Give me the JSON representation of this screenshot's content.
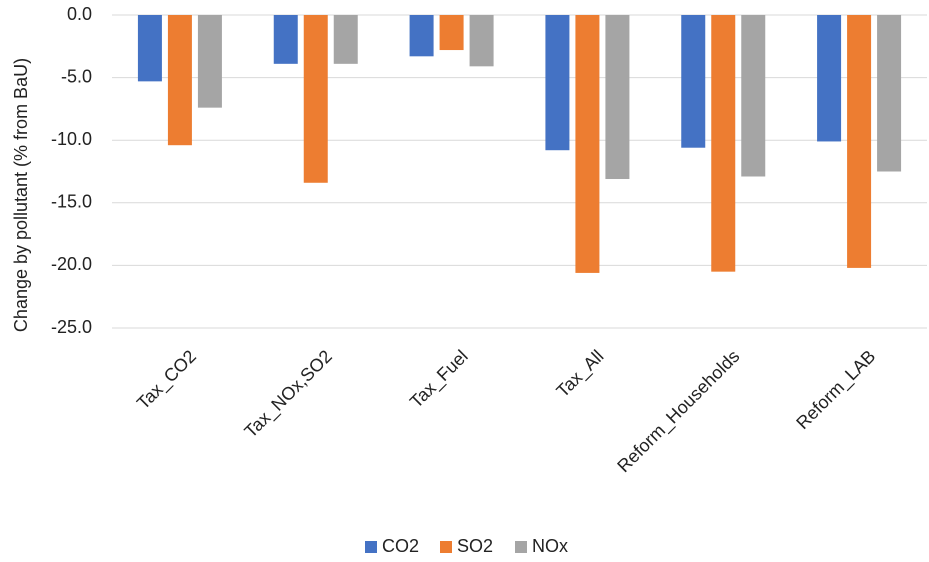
{
  "chart_data": {
    "type": "bar",
    "y_label": "Change by pollutant (% from BaU)",
    "categories": [
      "Tax_CO2",
      "Tax_NOx,SO2",
      "Tax_Fuel",
      "Tax_All",
      "Reform_Households",
      "Reform_LAB"
    ],
    "series": [
      {
        "name": "CO2",
        "color": "#4472c4",
        "values": [
          -5.3,
          -3.9,
          -3.3,
          -10.8,
          -10.6,
          -10.1
        ]
      },
      {
        "name": "SO2",
        "color": "#ed7d31",
        "values": [
          -10.4,
          -13.4,
          -2.8,
          -20.6,
          -20.5,
          -20.2
        ]
      },
      {
        "name": "NOx",
        "color": "#a5a5a5",
        "values": [
          -7.4,
          -3.9,
          -4.1,
          -13.1,
          -12.9,
          -12.5
        ]
      }
    ],
    "ylim": [
      -25,
      0
    ],
    "yticks": [
      {
        "value": 0,
        "label": "0.0"
      },
      {
        "value": -5,
        "label": "-5.0"
      },
      {
        "value": -10,
        "label": "-10.0"
      },
      {
        "value": -15,
        "label": "-15.0"
      },
      {
        "value": -20,
        "label": "-20.0"
      },
      {
        "value": -25,
        "label": "-25.0"
      }
    ],
    "grid": true,
    "legend": "bottom"
  }
}
